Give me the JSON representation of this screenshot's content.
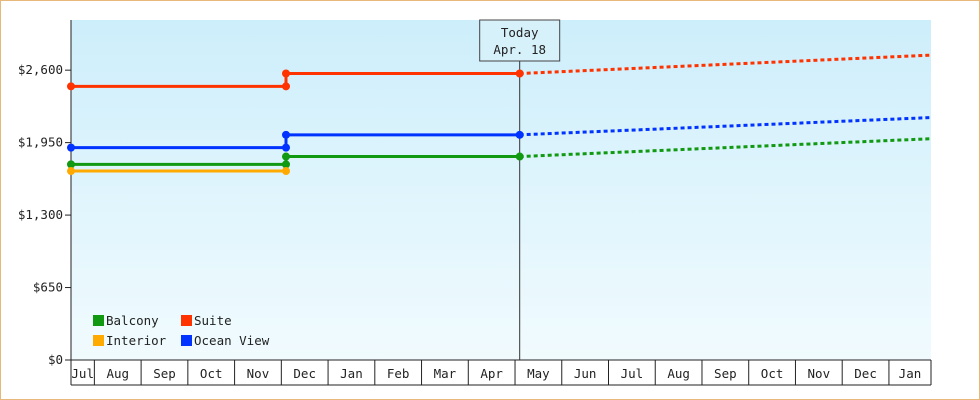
{
  "chart_data": {
    "type": "line",
    "title": "",
    "xlabel": "",
    "ylabel": "",
    "ylim": [
      0,
      3050
    ],
    "y_ticks": [
      {
        "value": 0,
        "label": "$0"
      },
      {
        "value": 650,
        "label": "$650"
      },
      {
        "value": 1300,
        "label": "$1,300"
      },
      {
        "value": 1950,
        "label": "$1,950"
      },
      {
        "value": 2600,
        "label": "$2,600"
      }
    ],
    "x_ticks": [
      "Jul",
      "Aug",
      "Sep",
      "Oct",
      "Nov",
      "Dec",
      "Jan",
      "Feb",
      "Mar",
      "Apr",
      "May",
      "Jun",
      "Jul",
      "Aug",
      "Sep",
      "Oct",
      "Nov",
      "Dec",
      "Jan"
    ],
    "x_range_months": [
      0,
      18.4
    ],
    "today": {
      "line1": "Today",
      "line2": "Apr. 18",
      "x": 9.6
    },
    "legend": {
      "position": "bottom-left",
      "columns": 2
    },
    "series": [
      {
        "name": "Balcony",
        "color": "#119911",
        "points": [
          [
            0,
            1755
          ],
          [
            4.6,
            1755
          ],
          [
            4.6,
            1825
          ],
          [
            9.6,
            1825
          ]
        ],
        "projection": [
          [
            9.6,
            1825
          ],
          [
            18.4,
            1985
          ]
        ]
      },
      {
        "name": "Suite",
        "color": "#ff3300",
        "points": [
          [
            0,
            2455
          ],
          [
            4.6,
            2455
          ],
          [
            4.6,
            2570
          ],
          [
            9.6,
            2570
          ]
        ],
        "projection": [
          [
            9.6,
            2570
          ],
          [
            18.4,
            2735
          ]
        ]
      },
      {
        "name": "Interior",
        "color": "#ffaa00",
        "points": [
          [
            0,
            1695
          ],
          [
            4.6,
            1695
          ]
        ],
        "projection": []
      },
      {
        "name": "Ocean View",
        "color": "#0033ff",
        "points": [
          [
            0,
            1905
          ],
          [
            4.6,
            1905
          ],
          [
            4.6,
            2020
          ],
          [
            9.6,
            2020
          ]
        ],
        "projection": [
          [
            9.6,
            2020
          ],
          [
            18.4,
            2175
          ]
        ]
      }
    ]
  }
}
